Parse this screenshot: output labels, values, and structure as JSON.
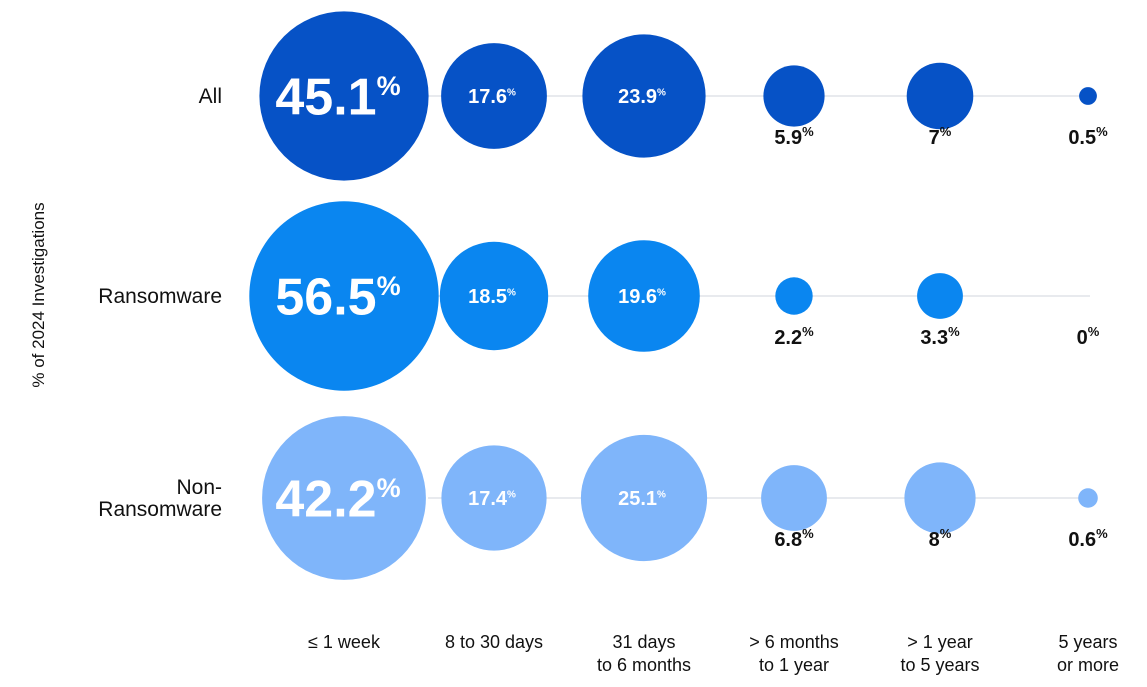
{
  "chart_data": {
    "type": "bubble",
    "ylabel": "% of 2024 Investigations",
    "categories": [
      "≤ 1 week",
      "8 to 30 days",
      "31 days\nto 6 months",
      "> 6 months\nto 1 year",
      "> 1 year\nto 5 years",
      "5 years\nor more"
    ],
    "value_suffix": "%",
    "series": [
      {
        "name": "All",
        "color": "#0652c6",
        "values": [
          45.1,
          17.6,
          23.9,
          5.9,
          7.0,
          0.5
        ]
      },
      {
        "name": "Ransomware",
        "color": "#0a86f0",
        "values": [
          56.5,
          18.5,
          19.6,
          2.2,
          3.3,
          0
        ]
      },
      {
        "name": "Non-\nRansomware",
        "color": "#7fb5fa",
        "values": [
          42.2,
          17.4,
          25.1,
          6.8,
          8.0,
          0.6
        ]
      }
    ]
  }
}
